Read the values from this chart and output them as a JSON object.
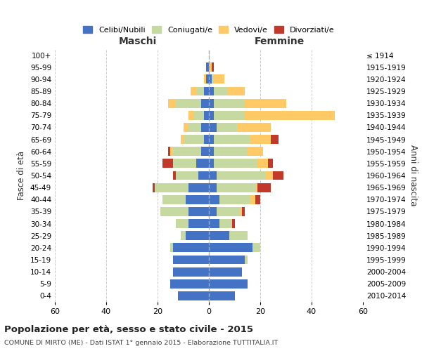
{
  "age_groups": [
    "100+",
    "95-99",
    "90-94",
    "85-89",
    "80-84",
    "75-79",
    "70-74",
    "65-69",
    "60-64",
    "55-59",
    "50-54",
    "45-49",
    "40-44",
    "35-39",
    "30-34",
    "25-29",
    "20-24",
    "15-19",
    "10-14",
    "5-9",
    "0-4"
  ],
  "birth_years": [
    "≤ 1914",
    "1915-1919",
    "1920-1924",
    "1925-1929",
    "1930-1934",
    "1935-1939",
    "1940-1944",
    "1945-1949",
    "1950-1954",
    "1955-1959",
    "1960-1964",
    "1965-1969",
    "1970-1974",
    "1975-1979",
    "1980-1984",
    "1985-1989",
    "1990-1994",
    "1995-1999",
    "2000-2004",
    "2005-2009",
    "2010-2014"
  ],
  "colors": {
    "celibe": "#4472c4",
    "coniugato": "#c5d9a0",
    "vedovo": "#ffc966",
    "divorziato": "#c0392b"
  },
  "maschi": {
    "celibe": [
      0,
      1,
      1,
      2,
      3,
      2,
      3,
      2,
      3,
      5,
      4,
      8,
      9,
      8,
      8,
      9,
      14,
      14,
      14,
      15,
      12
    ],
    "coniugato": [
      0,
      0,
      0,
      3,
      10,
      4,
      5,
      8,
      11,
      9,
      9,
      13,
      9,
      11,
      5,
      2,
      1,
      0,
      0,
      0,
      0
    ],
    "vedovo": [
      0,
      0,
      1,
      2,
      3,
      2,
      2,
      1,
      1,
      0,
      0,
      0,
      0,
      0,
      0,
      0,
      0,
      0,
      0,
      0,
      0
    ],
    "divorziato": [
      0,
      0,
      0,
      0,
      0,
      0,
      0,
      0,
      1,
      4,
      1,
      1,
      0,
      0,
      0,
      0,
      0,
      0,
      0,
      0,
      0
    ]
  },
  "femmine": {
    "nubile": [
      0,
      0,
      1,
      2,
      2,
      2,
      3,
      2,
      2,
      2,
      3,
      3,
      4,
      3,
      4,
      8,
      17,
      14,
      13,
      15,
      10
    ],
    "coniugata": [
      0,
      0,
      1,
      5,
      12,
      12,
      8,
      14,
      13,
      17,
      19,
      15,
      12,
      9,
      5,
      7,
      3,
      1,
      0,
      0,
      0
    ],
    "vedova": [
      0,
      1,
      4,
      7,
      16,
      35,
      13,
      8,
      6,
      4,
      3,
      1,
      2,
      1,
      0,
      0,
      0,
      0,
      0,
      0,
      0
    ],
    "divorziata": [
      0,
      1,
      0,
      0,
      0,
      0,
      0,
      3,
      0,
      2,
      4,
      5,
      2,
      1,
      1,
      0,
      0,
      0,
      0,
      0,
      0
    ]
  },
  "title_bold": "Popolazione per età, sesso e stato civile - 2015",
  "subtitle": "COMUNE DI MIRTO (ME) - Dati ISTAT 1° gennaio 2015 - Elaborazione TUTTITALIA.IT",
  "xlabel_left": "Maschi",
  "xlabel_right": "Femmine",
  "ylabel_left": "Fasce di età",
  "ylabel_right": "Anni di nascita",
  "xlim": 60,
  "legend_labels": [
    "Celibi/Nubili",
    "Coniugati/e",
    "Vedovi/e",
    "Divorziati/e"
  ],
  "background_color": "#ffffff"
}
